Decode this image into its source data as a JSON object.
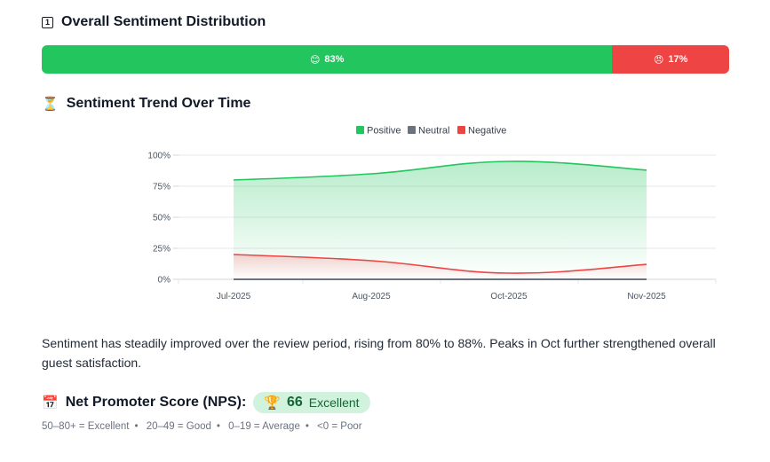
{
  "distribution": {
    "title": "Overall Sentiment Distribution",
    "title_icon": "1",
    "segments": [
      {
        "name": "positive",
        "emoji": "😊",
        "label": "83%",
        "value": 83,
        "color": "#22c55e"
      },
      {
        "name": "negative",
        "emoji": "😠",
        "label": "17%",
        "value": 17,
        "color": "#ef4444"
      }
    ]
  },
  "trend": {
    "title": "Sentiment Trend Over Time",
    "title_icon": "⏳"
  },
  "chart_data": {
    "type": "area",
    "categories": [
      "Jul-2025",
      "Aug-2025",
      "Oct-2025",
      "Nov-2025"
    ],
    "series": [
      {
        "name": "Positive",
        "values": [
          80,
          85,
          95,
          88
        ],
        "color": "#22c55e"
      },
      {
        "name": "Neutral",
        "values": [
          0,
          0,
          0,
          0
        ],
        "color": "#6b7280"
      },
      {
        "name": "Negative",
        "values": [
          20,
          15,
          5,
          12
        ],
        "color": "#ef4444"
      }
    ],
    "ylim": [
      0,
      100
    ],
    "yticks": [
      "0%",
      "25%",
      "50%",
      "75%",
      "100%"
    ],
    "ytick_values": [
      0,
      25,
      50,
      75,
      100
    ],
    "legend_position": "top-center",
    "grid": true
  },
  "summary": "Sentiment has steadily improved over the review period, rising from 80% to 88%. Peaks in Oct further strengthened overall guest satisfaction.",
  "nps": {
    "title": "Net Promoter Score (NPS):",
    "title_icon": "📅",
    "badge_icon": "🏆",
    "value": "66",
    "label": "Excellent",
    "scale": [
      "50–80+ = Excellent",
      "20–49 = Good",
      "0–19 = Average",
      "<0 = Poor"
    ]
  }
}
